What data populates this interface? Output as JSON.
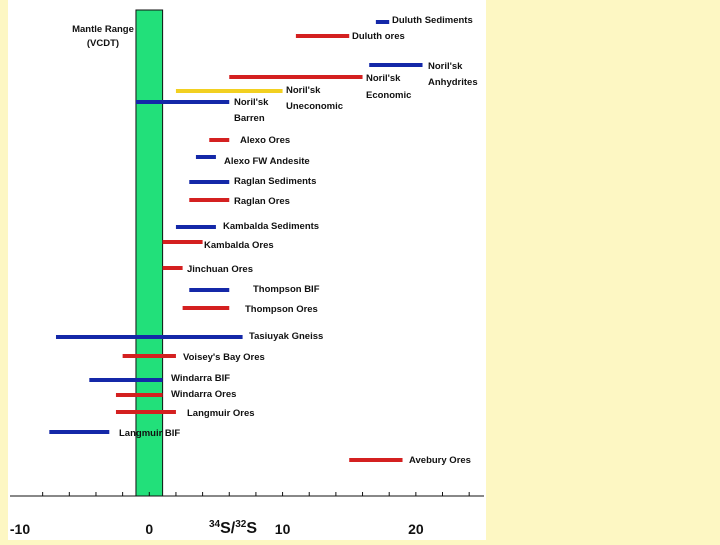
{
  "chart_data": {
    "type": "range",
    "title": "",
    "xlabel": "34S/32S",
    "xlabel_parts": {
      "mass_a": "34",
      "elem_a": "S/",
      "mass_b": "32",
      "elem_b": "S"
    },
    "ylabel": "",
    "xlim": [
      -10,
      25
    ],
    "x_ticks": [
      -10,
      0,
      10,
      20
    ],
    "minor_tick_step": 2,
    "grid": false,
    "legend": "none",
    "colors": {
      "ore": "#d42020",
      "sediment": "#1428a8",
      "uneconomic": "#f2d020",
      "mantle": "#22e07a",
      "background": "#fdf7c3"
    },
    "mantle_range": {
      "label_line1": "Mantle Range",
      "label_line2": "(VCDT)",
      "range": [
        -1,
        1
      ]
    },
    "series": [
      {
        "name": "Duluth Sediments",
        "kind": "sediment",
        "range": [
          17,
          18
        ]
      },
      {
        "name": "Duluth ores",
        "kind": "ore",
        "range": [
          11,
          15
        ]
      },
      {
        "name": "Noril'sk Anhydrites",
        "kind": "sediment",
        "range": [
          16.5,
          20.5
        ]
      },
      {
        "name": "Noril'sk Economic",
        "kind": "ore",
        "range": [
          6,
          16
        ]
      },
      {
        "name": "Noril'sk Uneconomic",
        "kind": "uneconomic",
        "range": [
          2,
          10
        ]
      },
      {
        "name": "Noril'sk Barren",
        "kind": "sediment",
        "range": [
          -1,
          6
        ]
      },
      {
        "name": "Alexo Ores",
        "kind": "ore",
        "range": [
          4.5,
          6
        ]
      },
      {
        "name": "Alexo FW Andesite",
        "kind": "sediment",
        "range": [
          3.5,
          5
        ]
      },
      {
        "name": "Raglan Sediments",
        "kind": "sediment",
        "range": [
          3,
          6
        ]
      },
      {
        "name": "Raglan Ores",
        "kind": "ore",
        "range": [
          3,
          6
        ]
      },
      {
        "name": "Kambalda Sediments",
        "kind": "sediment",
        "range": [
          2,
          5
        ]
      },
      {
        "name": "Kambalda Ores",
        "kind": "ore",
        "range": [
          1,
          4
        ]
      },
      {
        "name": "Jinchuan Ores",
        "kind": "ore",
        "range": [
          1,
          2.5
        ]
      },
      {
        "name": "Thompson BIF",
        "kind": "sediment",
        "range": [
          3,
          6
        ]
      },
      {
        "name": "Thompson Ores",
        "kind": "ore",
        "range": [
          2.5,
          6
        ]
      },
      {
        "name": "Tasiuyak Gneiss",
        "kind": "sediment",
        "range": [
          -7,
          7
        ]
      },
      {
        "name": "Voisey's Bay Ores",
        "kind": "ore",
        "range": [
          -2,
          2
        ]
      },
      {
        "name": "Windarra BIF",
        "kind": "sediment",
        "range": [
          -4.5,
          1
        ]
      },
      {
        "name": "Windarra Ores",
        "kind": "ore",
        "range": [
          -2.5,
          1
        ]
      },
      {
        "name": "Langmuir Ores",
        "kind": "ore",
        "range": [
          -2.5,
          2
        ]
      },
      {
        "name": "Langmuir BIF",
        "kind": "sediment",
        "range": [
          -7.5,
          -3
        ]
      },
      {
        "name": "Avebury Ores",
        "kind": "ore",
        "range": [
          15,
          19
        ]
      }
    ]
  }
}
